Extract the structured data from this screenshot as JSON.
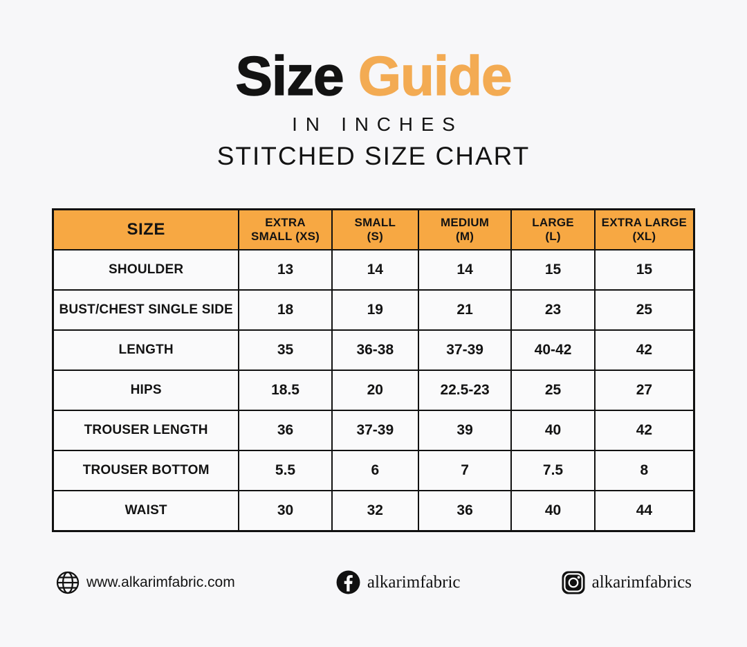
{
  "title": {
    "main_black": "Size",
    "main_orange": "Guide",
    "subtitle": "IN INCHES",
    "subsubtitle": "STITCHED SIZE CHART",
    "accent_color": "#F3AB53"
  },
  "colors": {
    "background": "#F7F7F9",
    "header_orange": "#F7A843",
    "text_black": "#131313",
    "table_border": "#111111"
  },
  "chart_data": {
    "type": "table",
    "title": "STITCHED SIZE CHART",
    "units": "IN INCHES",
    "columns": [
      "SIZE",
      "EXTRA SMALL (XS)",
      "SMALL (S)",
      "MEDIUM (M)",
      "LARGE (L)",
      "EXTRA LARGE (XL)"
    ],
    "header_lines": [
      [
        "SIZE"
      ],
      [
        "EXTRA",
        "SMALL (XS)"
      ],
      [
        "SMALL",
        "(S)"
      ],
      [
        "MEDIUM",
        "(M)"
      ],
      [
        "LARGE",
        "(L)"
      ],
      [
        "EXTRA LARGE",
        "(XL)"
      ]
    ],
    "rows": [
      {
        "label": "SHOULDER",
        "values": [
          "13",
          "14",
          "14",
          "15",
          "15"
        ]
      },
      {
        "label": "BUST/CHEST SINGLE SIDE",
        "values": [
          "18",
          "19",
          "21",
          "23",
          "25"
        ]
      },
      {
        "label": "LENGTH",
        "values": [
          "35",
          "36-38",
          "37-39",
          "40-42",
          "42"
        ]
      },
      {
        "label": "HIPS",
        "values": [
          "18.5",
          "20",
          "22.5-23",
          "25",
          "27"
        ]
      },
      {
        "label": "TROUSER LENGTH",
        "values": [
          "36",
          "37-39",
          "39",
          "40",
          "42"
        ]
      },
      {
        "label": "TROUSER BOTTOM",
        "values": [
          "5.5",
          "6",
          "7",
          "7.5",
          "8"
        ]
      },
      {
        "label": "WAIST",
        "values": [
          "30",
          "32",
          "36",
          "40",
          "44"
        ]
      }
    ]
  },
  "footer": {
    "website": {
      "icon": "globe-icon",
      "text": "www.alkarimfabric.com"
    },
    "facebook": {
      "icon": "facebook-icon",
      "text": "alkarimfabric"
    },
    "instagram": {
      "icon": "instagram-icon",
      "text": "alkarimfabrics"
    }
  }
}
